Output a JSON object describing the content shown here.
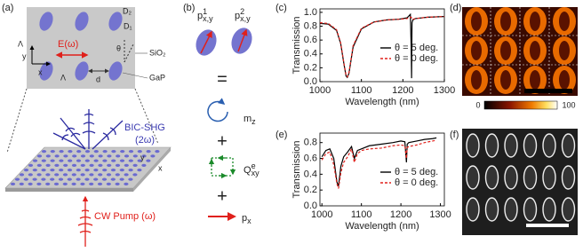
{
  "figure": {
    "panel_labels": [
      "(a)",
      "(b)",
      "(c)",
      "(d)",
      "(e)",
      "(f)"
    ],
    "a": {
      "d2": "D₂",
      "d1": "D₁",
      "field": "E(ω)",
      "theta": "θ",
      "substrate": "SiO₂",
      "pillar": "GaP",
      "lambda_v": "Λ",
      "lambda_h": "Λ",
      "gap": "d",
      "axis_y": "y",
      "axis_x": "x",
      "emission": "BIC-SHG",
      "emission_freq": "(2ω)",
      "pump": "CW Pump (ω)",
      "slab_y": "y",
      "slab_x": "x"
    },
    "b": {
      "p1": {
        "main": "p",
        "sup": "1",
        "sub": "x,y"
      },
      "p2": {
        "main": "p",
        "sup": "2",
        "sub": "x,y"
      },
      "equals": "=",
      "plus1": "+",
      "plus2": "+",
      "mz": {
        "main": "m",
        "sub": "z"
      },
      "q": {
        "main": "Q",
        "sup": "e",
        "sub": "xy"
      },
      "px": {
        "main": "p",
        "sub": "x"
      }
    },
    "d": {
      "colorbar_min": 0,
      "colorbar_max": 100
    }
  },
  "chart_data": [
    {
      "type": "line",
      "xlabel": "Wavelength (nm)",
      "ylabel": "Transmission",
      "x": [
        1000,
        1020,
        1040,
        1050,
        1058,
        1063,
        1066,
        1070,
        1080,
        1100,
        1130,
        1160,
        1190,
        1210,
        1218,
        1220,
        1221,
        1222,
        1224,
        1230,
        1260,
        1300
      ],
      "series": [
        {
          "name": "θ = 5 deg.",
          "color": "#000000",
          "dash": false,
          "values": [
            0.84,
            0.83,
            0.74,
            0.55,
            0.25,
            0.08,
            0.06,
            0.12,
            0.5,
            0.76,
            0.86,
            0.89,
            0.9,
            0.92,
            0.97,
            0.5,
            0.05,
            0.85,
            0.89,
            0.91,
            0.93,
            0.94
          ]
        },
        {
          "name": "θ = 0 deg.",
          "color": "#e0201b",
          "dash": true,
          "values": [
            0.85,
            0.84,
            0.75,
            0.56,
            0.26,
            0.09,
            0.07,
            0.13,
            0.52,
            0.77,
            0.86,
            0.89,
            0.9,
            0.91,
            0.93,
            0.93,
            0.92,
            0.9,
            0.9,
            0.91,
            0.93,
            0.94
          ]
        }
      ],
      "xlim": [
        1000,
        1300
      ],
      "xticks": [
        1000,
        1100,
        1200,
        1300
      ],
      "ylim": [
        0,
        1.05
      ],
      "yticks": [
        {
          "value": 0,
          "label": "0.0"
        },
        {
          "value": 0.2,
          "label": "0.2"
        },
        {
          "value": 0.4,
          "label": "0.4"
        },
        {
          "value": 0.6,
          "label": "0.6"
        },
        {
          "value": 0.8,
          "label": "0.8"
        },
        {
          "value": 1,
          "label": "1.0"
        }
      ],
      "legend": "right"
    },
    {
      "type": "line",
      "xlabel": "Wavelength (nm)",
      "ylabel": "Transmission",
      "x": [
        1000,
        1010,
        1020,
        1030,
        1038,
        1042,
        1048,
        1055,
        1065,
        1075,
        1082,
        1090,
        1100,
        1120,
        1150,
        1180,
        1200,
        1210,
        1214,
        1216,
        1220,
        1240,
        1260,
        1280,
        1290
      ],
      "series": [
        {
          "name": "θ = 5 deg.",
          "color": "#000000",
          "dash": false,
          "values": [
            0.62,
            0.7,
            0.72,
            0.6,
            0.3,
            0.25,
            0.5,
            0.62,
            0.68,
            0.75,
            0.6,
            0.7,
            0.72,
            0.76,
            0.78,
            0.8,
            0.82,
            0.81,
            0.55,
            0.78,
            0.8,
            0.82,
            0.84,
            0.85,
            0.86
          ]
        },
        {
          "name": "θ = 0 deg.",
          "color": "#e0201b",
          "dash": true,
          "values": [
            0.58,
            0.66,
            0.68,
            0.52,
            0.28,
            0.22,
            0.42,
            0.55,
            0.62,
            0.72,
            0.55,
            0.66,
            0.7,
            0.72,
            0.73,
            0.76,
            0.77,
            0.76,
            0.6,
            0.74,
            0.75,
            0.77,
            0.8,
            0.82,
            0.83
          ]
        }
      ],
      "xlim": [
        995,
        1310
      ],
      "xticks": [
        1000,
        1100,
        1200,
        1300
      ],
      "ylim": [
        0,
        0.92
      ],
      "yticks": [
        {
          "value": 0,
          "label": "0.0"
        },
        {
          "value": 0.2,
          "label": "0.2"
        },
        {
          "value": 0.4,
          "label": "0.4"
        },
        {
          "value": 0.6,
          "label": "0.6"
        },
        {
          "value": 0.8,
          "label": "0.8"
        }
      ],
      "legend": "right"
    }
  ]
}
